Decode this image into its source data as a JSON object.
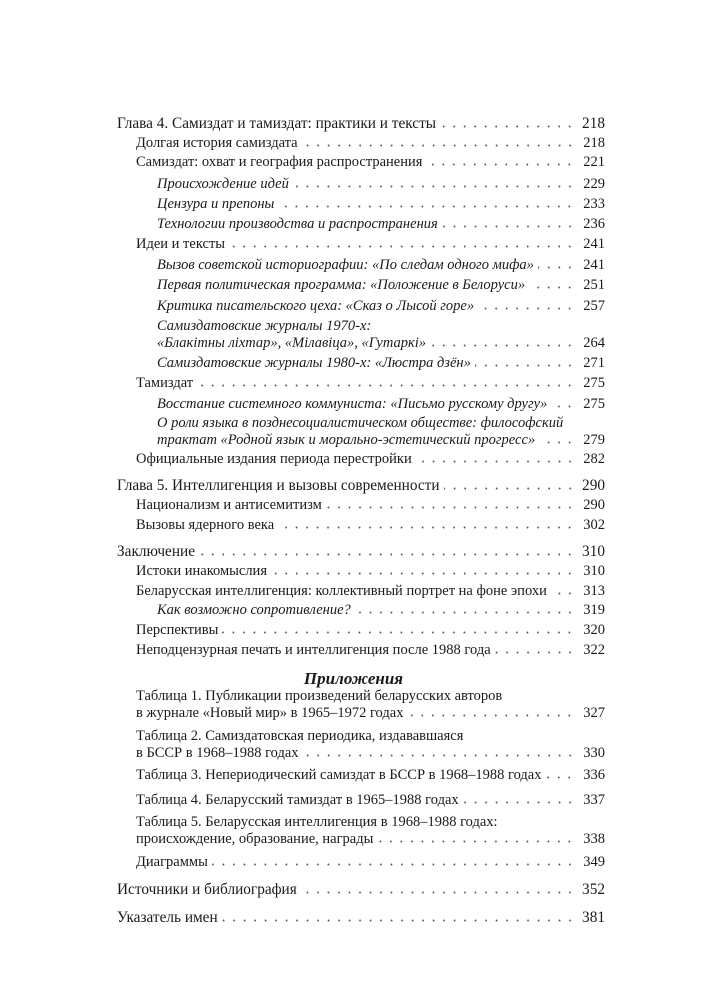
{
  "toc": [
    {
      "level": "l0",
      "title": "Глава 4. Самиздат и тамиздат: практики и тексты",
      "page": "218"
    },
    {
      "level": "l1",
      "title": "Долгая история самиздата",
      "page": "218"
    },
    {
      "level": "l1",
      "title": "Самиздат: охват и география распространения",
      "page": "221"
    },
    {
      "level": "l2",
      "title": "Происхождение идей",
      "page": "229"
    },
    {
      "level": "l2",
      "title": "Цензура и препоны",
      "page": "233"
    },
    {
      "level": "l2",
      "title": "Технологии производства и распространения",
      "page": "236"
    },
    {
      "level": "l1",
      "title": "Идеи и тексты",
      "page": "241"
    },
    {
      "level": "l2",
      "title": "Вызов советской историографии: «По следам одного мифа»",
      "page": "241"
    },
    {
      "level": "l2",
      "title": "Первая политическая программа: «Положение в Белоруси»",
      "page": "251"
    },
    {
      "level": "l2",
      "title": "Критика писательского цеха: «Сказ о Лысой горе»",
      "page": "257"
    },
    {
      "level": "l2",
      "title": "Самиздатовские журналы 1970-х:",
      "title_cont": "«Блакітны ліхтар», «Мілавіца», «Гутаркі»",
      "page": "264"
    },
    {
      "level": "l2",
      "title": "Самиздатовские журналы 1980-х: «Люстра дзён»",
      "page": "271"
    },
    {
      "level": "l1",
      "title": "Тамиздат",
      "page": "275"
    },
    {
      "level": "l2",
      "title": "Восстание системного коммуниста: «Письмо русскому другу»",
      "page": "275"
    },
    {
      "level": "l2",
      "title": "О роли языка в позднесоциалистическом обществе: философский",
      "title_cont": "трактат «Родной язык и морально-эстетический прогресс»",
      "page": "279"
    },
    {
      "level": "l1",
      "title": "Официальные издания периода перестройки",
      "page": "282"
    },
    {
      "level": "l0",
      "title": "Глава 5. Интеллигенция и вызовы современности",
      "page": "290"
    },
    {
      "level": "l1",
      "title": "Национализм и антисемитизм",
      "page": "290"
    },
    {
      "level": "l1",
      "title": "Вызовы ядерного века",
      "page": "302"
    },
    {
      "level": "l0",
      "title": "Заключение",
      "page": "310"
    },
    {
      "level": "l1",
      "title": "Истоки инакомыслия",
      "page": "310"
    },
    {
      "level": "l1",
      "title": "Беларусская интеллигенция: коллективный портрет на фоне эпохи",
      "page": "313"
    },
    {
      "level": "l2",
      "title": "Как возможно сопротивление?",
      "page": "319"
    },
    {
      "level": "l1",
      "title": "Перспективы",
      "page": "320"
    },
    {
      "level": "l1",
      "title": "Неподцензурная печать и интеллигенция после 1988 года",
      "page": "322"
    },
    {
      "level": "app",
      "title": "Таблица 1. Публикации произведений беларусских авторов",
      "title_cont": "в журнале «Новый мир» в 1965–1972 годах",
      "page": "327"
    },
    {
      "level": "app",
      "title": "Таблица 2. Самиздатовская периодика, издававшаяся",
      "title_cont": "в БССР в 1968–1988 годах",
      "page": "330"
    },
    {
      "level": "app",
      "title": "Таблица 3. Непериодический самиздат в БССР в 1968–1988 годах",
      "page": "336"
    },
    {
      "level": "app",
      "title": "Таблица 4. Беларусский тамиздат в 1965–1988 годах",
      "page": "337"
    },
    {
      "level": "app",
      "title": "Таблица 5. Беларусская интеллигенция в 1968–1988 годах:",
      "title_cont": "происхождение, образование, награды",
      "page": "338"
    },
    {
      "level": "app",
      "title": "Диаграммы",
      "page": "349"
    },
    {
      "level": "l0",
      "title": "Источники и библиография",
      "page": "352"
    },
    {
      "level": "l0",
      "title": "Указатель имен",
      "page": "381"
    }
  ],
  "appendix_heading": "Приложения"
}
